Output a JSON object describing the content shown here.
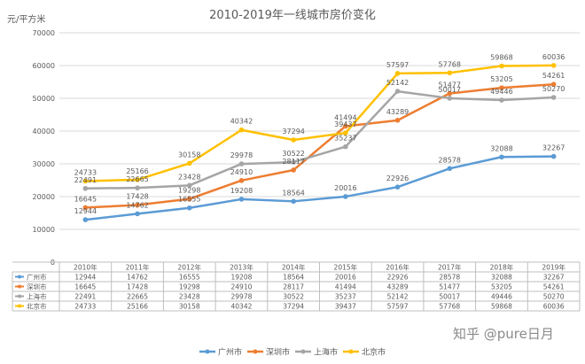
{
  "chart_data": {
    "type": "line",
    "title": "2010-2019年一线城市房价变化",
    "ylabel": "元/平方米",
    "xlabel": "",
    "ylim": [
      0,
      70000
    ],
    "yticks": [
      0,
      10000,
      20000,
      30000,
      40000,
      50000,
      60000,
      70000
    ],
    "grid": true,
    "legend_position": "bottom",
    "categories": [
      "2010年",
      "2011年",
      "2012年",
      "2013年",
      "2014年",
      "2015年",
      "2016年",
      "2017年",
      "2018年",
      "2019年"
    ],
    "series": [
      {
        "name": "广州市",
        "color": "#5B9BD5",
        "values": [
          12944,
          14762,
          16555,
          19208,
          18564,
          20016,
          22926,
          28578,
          32088,
          32267
        ]
      },
      {
        "name": "深圳市",
        "color": "#ED7D31",
        "values": [
          16645,
          17428,
          19298,
          24910,
          28117,
          41494,
          43289,
          51477,
          53205,
          54261
        ]
      },
      {
        "name": "上海市",
        "color": "#A5A5A5",
        "values": [
          22491,
          22665,
          23428,
          29978,
          30522,
          35237,
          52142,
          50017,
          49446,
          50270
        ]
      },
      {
        "name": "北京市",
        "color": "#FFC000",
        "values": [
          24733,
          25166,
          30158,
          40342,
          37294,
          39437,
          57597,
          57768,
          59868,
          60036
        ]
      }
    ]
  },
  "watermark": "知乎 @pure日月"
}
